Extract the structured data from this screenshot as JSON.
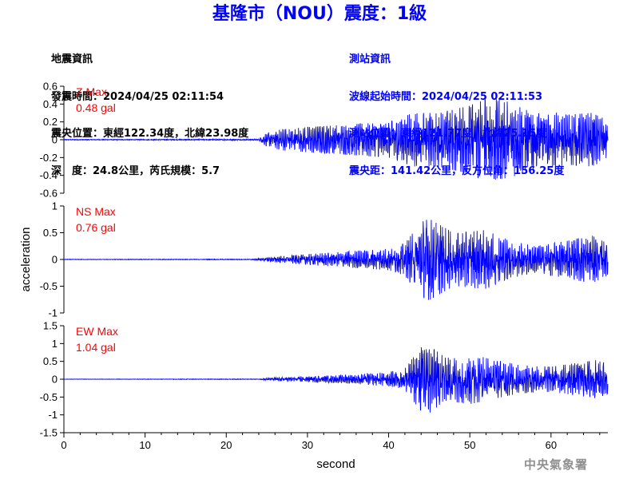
{
  "title": "基隆市（NOU）震度：1級",
  "quake_info": {
    "heading": "地震資訊",
    "origin_time": "發震時間：2024/04/25 02:11:54",
    "epicenter": "震央位置：東經122.34度，北緯23.98度",
    "depth_magnitude": "深　度：24.8公里，芮氏規模：5.7"
  },
  "station_info": {
    "heading": "測站資訊",
    "wave_start": "波線起始時間：2024/04/25 02:11:53",
    "station_location": "測站位置：東經121.77度，北緯25.15度",
    "distance_azimuth": "震央距：141.42公里，反方位角：156.25度"
  },
  "agency": "中央氣象署",
  "colors": {
    "title": "#0000ff",
    "trace": "#0000ff",
    "max_label": "#ff0000",
    "axis": "#000000"
  },
  "chart_data": {
    "type": "line",
    "xlabel": "second",
    "ylabel": "acceleration",
    "xlim": [
      0,
      67
    ],
    "xticks": [
      0,
      10,
      20,
      30,
      40,
      50,
      60
    ],
    "grid": false,
    "panels": [
      {
        "component": "Z",
        "max_label": "Z Max",
        "max_value": "0.48 gal",
        "ylim": [
          -0.6,
          0.6
        ],
        "yticks": [
          -0.6,
          -0.4,
          -0.2,
          0,
          0.2,
          0.4,
          0.6
        ],
        "envelope": [
          [
            0,
            0.005
          ],
          [
            24,
            0.008
          ],
          [
            25,
            0.08
          ],
          [
            27,
            0.12
          ],
          [
            30,
            0.14
          ],
          [
            35,
            0.17
          ],
          [
            40,
            0.2
          ],
          [
            43,
            0.3
          ],
          [
            46,
            0.3
          ],
          [
            50,
            0.38
          ],
          [
            52,
            0.48
          ],
          [
            55,
            0.42
          ],
          [
            58,
            0.35
          ],
          [
            62,
            0.28
          ],
          [
            65,
            0.3
          ],
          [
            67,
            0.22
          ]
        ]
      },
      {
        "component": "NS",
        "max_label": "NS Max",
        "max_value": "0.76 gal",
        "ylim": [
          -1,
          1
        ],
        "yticks": [
          -1,
          -0.5,
          0,
          0.5,
          1
        ],
        "envelope": [
          [
            0,
            0.005
          ],
          [
            23,
            0.008
          ],
          [
            26,
            0.05
          ],
          [
            30,
            0.1
          ],
          [
            35,
            0.15
          ],
          [
            40,
            0.2
          ],
          [
            42,
            0.3
          ],
          [
            44,
            0.7
          ],
          [
            45,
            0.76
          ],
          [
            48,
            0.5
          ],
          [
            52,
            0.55
          ],
          [
            55,
            0.35
          ],
          [
            58,
            0.25
          ],
          [
            62,
            0.35
          ],
          [
            65,
            0.45
          ],
          [
            67,
            0.3
          ]
        ]
      },
      {
        "component": "EW",
        "max_label": "EW Max",
        "max_value": "1.04 gal",
        "ylim": [
          -1.5,
          1.5
        ],
        "yticks": [
          -1.5,
          -1,
          -0.5,
          0,
          0.5,
          1,
          1.5
        ],
        "envelope": [
          [
            0,
            0.005
          ],
          [
            24,
            0.01
          ],
          [
            26,
            0.05
          ],
          [
            30,
            0.08
          ],
          [
            35,
            0.12
          ],
          [
            40,
            0.2
          ],
          [
            42,
            0.3
          ],
          [
            43,
            0.6
          ],
          [
            44.5,
            1.04
          ],
          [
            47,
            0.6
          ],
          [
            50,
            0.7
          ],
          [
            53,
            0.55
          ],
          [
            56,
            0.4
          ],
          [
            60,
            0.35
          ],
          [
            63,
            0.45
          ],
          [
            66,
            0.55
          ],
          [
            67,
            0.4
          ]
        ]
      }
    ]
  }
}
